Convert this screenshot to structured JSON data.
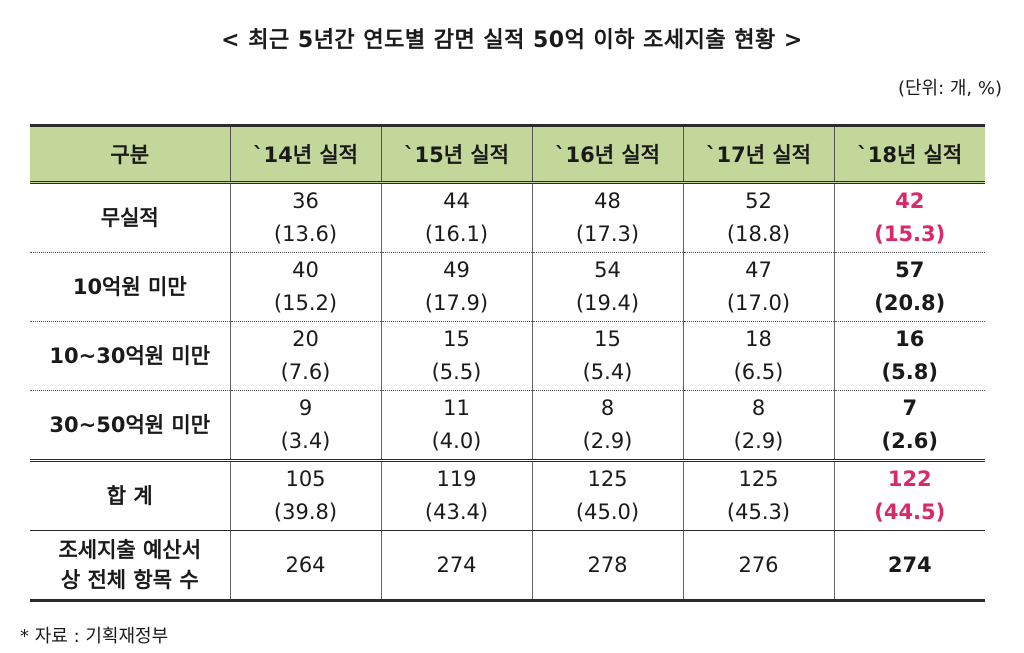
{
  "title": "< 최근 5년간 연도별 감면 실적 50억 이하 조세지출 현황 >",
  "unit": "(단위: 개, %)",
  "headers": [
    "구분",
    "`14년 실적",
    "`15년 실적",
    "`16년 실적",
    "`17년 실적",
    "`18년 실적"
  ],
  "rows": [
    {
      "label": "무실적",
      "values": [
        "36",
        "44",
        "48",
        "52",
        "42"
      ],
      "shares": [
        "(13.6)",
        "(16.1)",
        "(17.3)",
        "(18.8)",
        "(15.3)"
      ]
    },
    {
      "label": "10억원 미만",
      "values": [
        "40",
        "49",
        "54",
        "47",
        "57"
      ],
      "shares": [
        "(15.2)",
        "(17.9)",
        "(19.4)",
        "(17.0)",
        "(20.8)"
      ]
    },
    {
      "label": "10~30억원 미만",
      "values": [
        "20",
        "15",
        "15",
        "18",
        "16"
      ],
      "shares": [
        "(7.6)",
        "(5.5)",
        "(5.4)",
        "(6.5)",
        "(5.8)"
      ]
    },
    {
      "label": "30~50억원 미만",
      "values": [
        "9",
        "11",
        "8",
        "8",
        "7"
      ],
      "shares": [
        "(3.4)",
        "(4.0)",
        "(2.9)",
        "(2.9)",
        "(2.6)"
      ]
    },
    {
      "label": "합  계",
      "values": [
        "105",
        "119",
        "125",
        "125",
        "122"
      ],
      "shares": [
        "(39.8)",
        "(43.4)",
        "(45.0)",
        "(45.3)",
        "(44.5)"
      ]
    }
  ],
  "budget_row": {
    "label_line1": "조세지출 예산서",
    "label_line2": "상 전체 항목 수",
    "values": [
      "264",
      "274",
      "278",
      "276",
      "274"
    ]
  },
  "source": "* 자료 : 기획재정부",
  "colors": {
    "header_bg": "#c4d79b",
    "highlight": "#d9296a"
  }
}
